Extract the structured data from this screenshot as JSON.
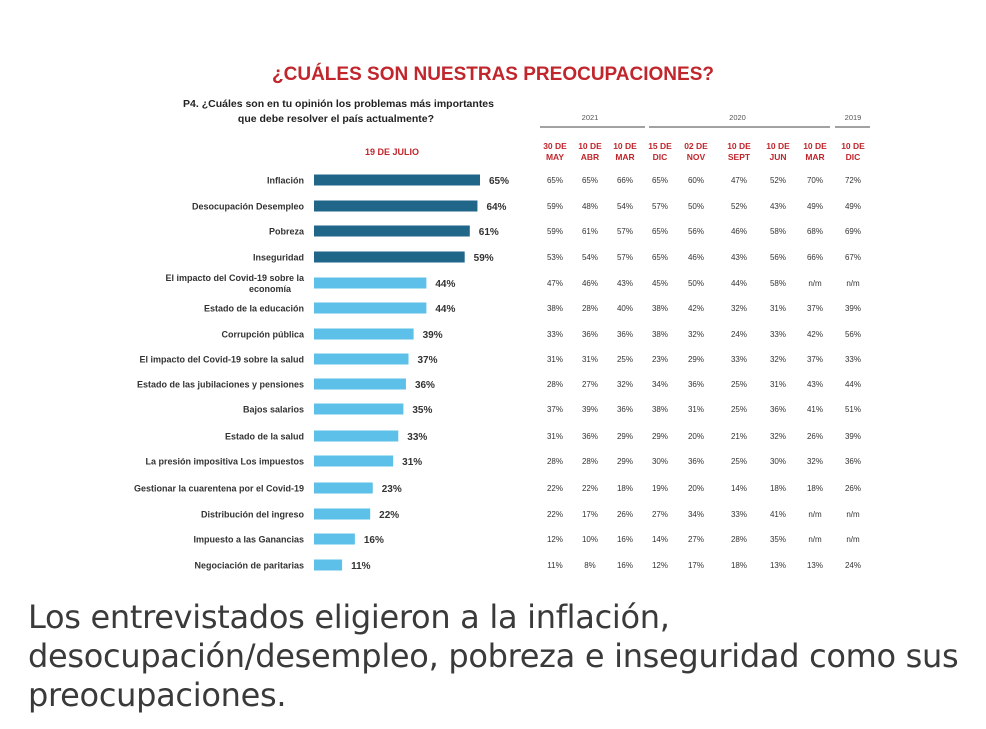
{
  "chart_data": {
    "type": "bar",
    "title": "¿CUÁLES SON NUESTRAS PREOCUPACIONES?",
    "question": "P4. ¿Cuáles son en tu opinión los problemas más importantes",
    "question_line2": "que debe resolver el país actualmente?",
    "current_label": "19 DE JULIO",
    "categories": [
      "Inflación",
      "Desocupación Desempleo",
      "Pobreza",
      "Inseguridad",
      "El impacto del Covid-19 sobre la economía",
      "Estado de la educación",
      "Corrupción pública",
      "El impacto del Covid-19 sobre la salud",
      "Estado de las jubilaciones y pensiones",
      "Bajos salarios",
      "Estado de la salud",
      "La presión impositiva Los impuestos",
      "Gestionar la cuarentena por el Covid-19",
      "Distribución del ingreso",
      "Impuesto a las Ganancias",
      "Negociación de paritarias"
    ],
    "category_lines": [
      [
        "Inflación"
      ],
      [
        "Desocupación Desempleo"
      ],
      [
        "Pobreza"
      ],
      [
        "Inseguridad"
      ],
      [
        "El impacto del Covid-19 sobre la",
        "economía"
      ],
      [
        "Estado de la educación"
      ],
      [
        "Corrupción pública"
      ],
      [
        "El impacto del Covid-19 sobre la salud"
      ],
      [
        "Estado de las jubilaciones y pensiones"
      ],
      [
        "Bajos salarios"
      ],
      [
        "Estado de la salud"
      ],
      [
        "La presión impositiva Los impuestos"
      ],
      [
        "Gestionar la cuarentena por el Covid-19"
      ],
      [
        "Distribución del ingreso"
      ],
      [
        "Impuesto a las Ganancias"
      ],
      [
        "Negociación de paritarias"
      ]
    ],
    "values": [
      65,
      64,
      61,
      59,
      44,
      44,
      39,
      37,
      36,
      35,
      33,
      31,
      23,
      22,
      16,
      11
    ],
    "value_labels": [
      "65%",
      "64%",
      "61%",
      "59%",
      "44%",
      "44%",
      "39%",
      "37%",
      "36%",
      "35%",
      "33%",
      "31%",
      "23%",
      "22%",
      "16%",
      "11%"
    ],
    "colors": {
      "dark": "#1f6688",
      "light": "#5cc0e8",
      "title": "#c0262c",
      "text": "#222222"
    },
    "year_groups": [
      {
        "label": "2021",
        "span": 3
      },
      {
        "label": "2020",
        "span": 5
      },
      {
        "label": "2019",
        "span": 1
      }
    ],
    "history_headers": [
      [
        "30 DE",
        "MAY"
      ],
      [
        "10 DE",
        "ABR"
      ],
      [
        "10 DE",
        "MAR"
      ],
      [
        "15 DE",
        "DIC"
      ],
      [
        "02 DE",
        "NOV"
      ],
      [
        "10 DE",
        "SEPT"
      ],
      [
        "10 DE",
        "JUN"
      ],
      [
        "10 DE",
        "MAR"
      ],
      [
        "10 DE",
        "DIC"
      ]
    ],
    "history": [
      [
        "65%",
        "65%",
        "66%",
        "65%",
        "60%",
        "47%",
        "52%",
        "70%",
        "72%"
      ],
      [
        "59%",
        "48%",
        "54%",
        "57%",
        "50%",
        "52%",
        "43%",
        "49%",
        "49%"
      ],
      [
        "59%",
        "61%",
        "57%",
        "65%",
        "56%",
        "46%",
        "58%",
        "68%",
        "69%"
      ],
      [
        "53%",
        "54%",
        "57%",
        "65%",
        "46%",
        "43%",
        "56%",
        "66%",
        "67%"
      ],
      [
        "47%",
        "46%",
        "43%",
        "45%",
        "50%",
        "44%",
        "58%",
        "n/m",
        "n/m"
      ],
      [
        "38%",
        "28%",
        "40%",
        "38%",
        "42%",
        "32%",
        "31%",
        "37%",
        "39%"
      ],
      [
        "33%",
        "36%",
        "36%",
        "38%",
        "32%",
        "24%",
        "33%",
        "42%",
        "56%"
      ],
      [
        "31%",
        "31%",
        "25%",
        "23%",
        "29%",
        "33%",
        "32%",
        "37%",
        "33%"
      ],
      [
        "28%",
        "27%",
        "32%",
        "34%",
        "36%",
        "25%",
        "31%",
        "43%",
        "44%"
      ],
      [
        "37%",
        "39%",
        "36%",
        "38%",
        "31%",
        "25%",
        "36%",
        "41%",
        "51%"
      ],
      [
        "31%",
        "36%",
        "29%",
        "29%",
        "20%",
        "21%",
        "32%",
        "26%",
        "39%"
      ],
      [
        "28%",
        "28%",
        "29%",
        "30%",
        "36%",
        "25%",
        "30%",
        "32%",
        "36%"
      ],
      [
        "22%",
        "22%",
        "18%",
        "19%",
        "20%",
        "14%",
        "18%",
        "18%",
        "26%"
      ],
      [
        "22%",
        "17%",
        "26%",
        "27%",
        "34%",
        "33%",
        "41%",
        "n/m",
        "n/m"
      ],
      [
        "12%",
        "10%",
        "16%",
        "14%",
        "27%",
        "28%",
        "35%",
        "n/m",
        "n/m"
      ],
      [
        "11%",
        "8%",
        "16%",
        "12%",
        "17%",
        "18%",
        "13%",
        "13%",
        "24%"
      ]
    ]
  },
  "caption": "Los entrevistados eligieron a la inflación, desocupación/desempleo, pobreza e inseguridad como sus preocupaciones."
}
